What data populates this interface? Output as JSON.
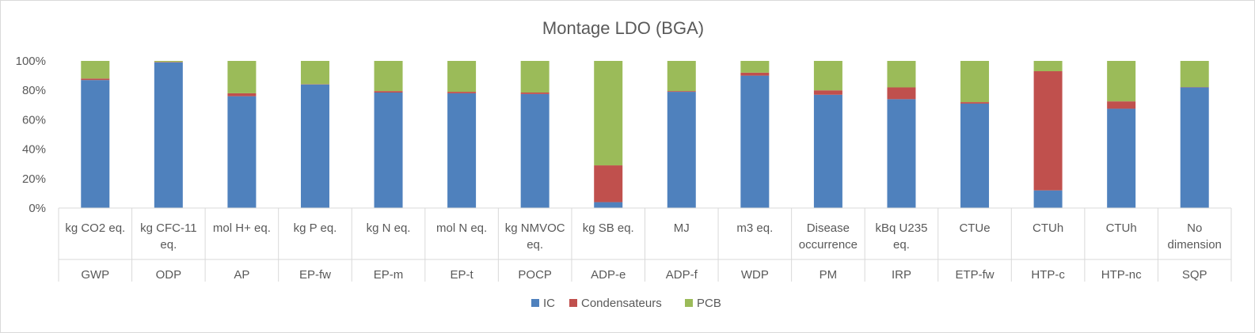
{
  "chart_data": {
    "type": "bar",
    "stacked": true,
    "percent_stacked": true,
    "title": "Montage LDO (BGA)",
    "ylim": [
      0,
      100
    ],
    "yticks": [
      0,
      20,
      40,
      60,
      80,
      100
    ],
    "ytick_labels": [
      "0%",
      "20%",
      "40%",
      "60%",
      "80%",
      "100%"
    ],
    "categories": [
      {
        "unit": [
          "kg CO2 eq."
        ],
        "indicator": "GWP"
      },
      {
        "unit": [
          "kg CFC-11",
          "eq."
        ],
        "indicator": "ODP"
      },
      {
        "unit": [
          "mol H+ eq."
        ],
        "indicator": "AP"
      },
      {
        "unit": [
          "kg P eq."
        ],
        "indicator": "EP-fw"
      },
      {
        "unit": [
          "kg N eq."
        ],
        "indicator": "EP-m"
      },
      {
        "unit": [
          "mol N eq."
        ],
        "indicator": "EP-t"
      },
      {
        "unit": [
          "kg NMVOC",
          "eq."
        ],
        "indicator": "POCP"
      },
      {
        "unit": [
          "kg SB eq."
        ],
        "indicator": "ADP-e"
      },
      {
        "unit": [
          "MJ"
        ],
        "indicator": "ADP-f"
      },
      {
        "unit": [
          "m3 eq."
        ],
        "indicator": "WDP"
      },
      {
        "unit": [
          "Disease",
          "occurrence"
        ],
        "indicator": "PM"
      },
      {
        "unit": [
          "kBq U235",
          "eq."
        ],
        "indicator": "IRP"
      },
      {
        "unit": [
          "CTUe"
        ],
        "indicator": "ETP-fw"
      },
      {
        "unit": [
          "CTUh"
        ],
        "indicator": "HTP-c"
      },
      {
        "unit": [
          "CTUh"
        ],
        "indicator": "HTP-nc"
      },
      {
        "unit": [
          "No",
          "dimension"
        ],
        "indicator": "SQP"
      }
    ],
    "series": [
      {
        "name": "IC",
        "color": "#4f81bd",
        "values": [
          87,
          99,
          76,
          84,
          78.5,
          78,
          77.5,
          4,
          79,
          90,
          77,
          74,
          71,
          12,
          67.5,
          82
        ]
      },
      {
        "name": "Condensateurs",
        "color": "#c0504d",
        "values": [
          1,
          0.3,
          2,
          0.2,
          1,
          1,
          1,
          25,
          0.5,
          2,
          3,
          8,
          1,
          81,
          5,
          0.2
        ]
      },
      {
        "name": "PCB",
        "color": "#9bbb59",
        "values": [
          12,
          0.7,
          22,
          15.8,
          20.5,
          21,
          21.5,
          71,
          20.5,
          8,
          20,
          18,
          28,
          7,
          27.5,
          17.8
        ]
      }
    ],
    "legend_position": "bottom",
    "grid": false
  }
}
